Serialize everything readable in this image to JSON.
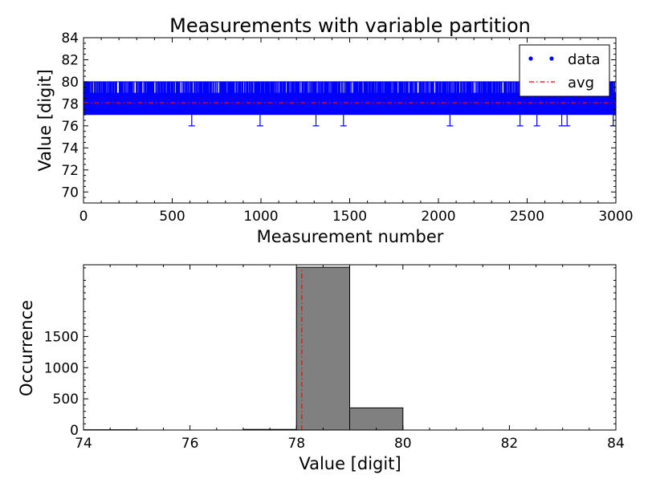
{
  "chart_data": [
    {
      "type": "scatter",
      "title": "Measurements with variable partition",
      "xlabel": "Measurement number",
      "ylabel": "Value  [digit]",
      "xlim": [
        0,
        3000
      ],
      "ylim": [
        69,
        84
      ],
      "xticks": [
        0,
        500,
        1000,
        1500,
        2000,
        2500,
        3000
      ],
      "yticks": [
        70,
        72,
        74,
        76,
        78,
        80,
        82,
        84
      ],
      "grid": false,
      "legend_position": "top-right",
      "band": {
        "low": 77,
        "high": 80,
        "color": "#0000ff"
      },
      "low_outliers": [
        {
          "x": 610,
          "y": 76
        },
        {
          "x": 995,
          "y": 76
        },
        {
          "x": 1310,
          "y": 76
        },
        {
          "x": 1465,
          "y": 76
        },
        {
          "x": 2065,
          "y": 76
        },
        {
          "x": 2460,
          "y": 76
        },
        {
          "x": 2555,
          "y": 76
        },
        {
          "x": 2695,
          "y": 76
        },
        {
          "x": 2725,
          "y": 76
        },
        {
          "x": 2985,
          "y": 76
        }
      ],
      "series": [
        {
          "name": "data",
          "style": "dots",
          "color": "#0000ff"
        },
        {
          "name": "avg",
          "style": "dash-dot",
          "color": "#ff0000",
          "value": 78.1
        }
      ]
    },
    {
      "type": "bar",
      "subtype": "histogram",
      "xlabel": "Value [digit]",
      "ylabel": "Occurrence",
      "xlim": [
        74,
        84
      ],
      "ylim": [
        0,
        2650
      ],
      "xticks": [
        74,
        76,
        78,
        80,
        82,
        84
      ],
      "yticks": [
        0,
        500,
        1000,
        1500
      ],
      "grid": false,
      "bar_color": "#808080",
      "bins": [
        {
          "start": 74,
          "end": 75,
          "count": 5
        },
        {
          "start": 77,
          "end": 78,
          "count": 10
        },
        {
          "start": 78,
          "end": 79,
          "count": 2610
        },
        {
          "start": 79,
          "end": 80,
          "count": 355
        }
      ],
      "avg_line": {
        "value": 78.1,
        "color": "#ff0000"
      }
    }
  ]
}
